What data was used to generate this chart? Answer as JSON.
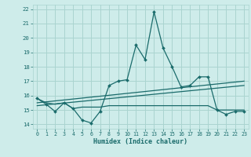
{
  "xlabel": "Humidex (Indice chaleur)",
  "bg_color": "#ceecea",
  "grid_color": "#aad4d0",
  "line_color": "#1a6b6b",
  "x": [
    0,
    1,
    2,
    3,
    4,
    5,
    6,
    7,
    8,
    9,
    10,
    11,
    12,
    13,
    14,
    15,
    16,
    17,
    18,
    19,
    20,
    21,
    22,
    23
  ],
  "line1": [
    15.8,
    15.4,
    14.9,
    15.5,
    15.1,
    14.3,
    14.1,
    14.9,
    16.7,
    17.0,
    17.1,
    19.5,
    18.5,
    21.8,
    19.3,
    18.0,
    16.6,
    16.7,
    17.3,
    17.3,
    15.0,
    14.7,
    14.9,
    14.9
  ],
  "line2": [
    15.8,
    15.5,
    15.4,
    15.5,
    15.1,
    15.2,
    15.2,
    15.2,
    15.3,
    15.3,
    15.3,
    15.3,
    15.3,
    15.3,
    15.3,
    15.3,
    15.3,
    15.3,
    15.3,
    15.3,
    15.0,
    15.0,
    15.0,
    15.0
  ],
  "line3_x": [
    0,
    23
  ],
  "line3_y": [
    15.5,
    17.0
  ],
  "line4_x": [
    0,
    23
  ],
  "line4_y": [
    15.3,
    16.7
  ],
  "ylim": [
    13.7,
    22.3
  ],
  "xlim": [
    -0.5,
    23.5
  ],
  "yticks": [
    14,
    15,
    16,
    17,
    18,
    19,
    20,
    21,
    22
  ],
  "xticks": [
    0,
    1,
    2,
    3,
    4,
    5,
    6,
    7,
    8,
    9,
    10,
    11,
    12,
    13,
    14,
    15,
    16,
    17,
    18,
    19,
    20,
    21,
    22,
    23
  ]
}
